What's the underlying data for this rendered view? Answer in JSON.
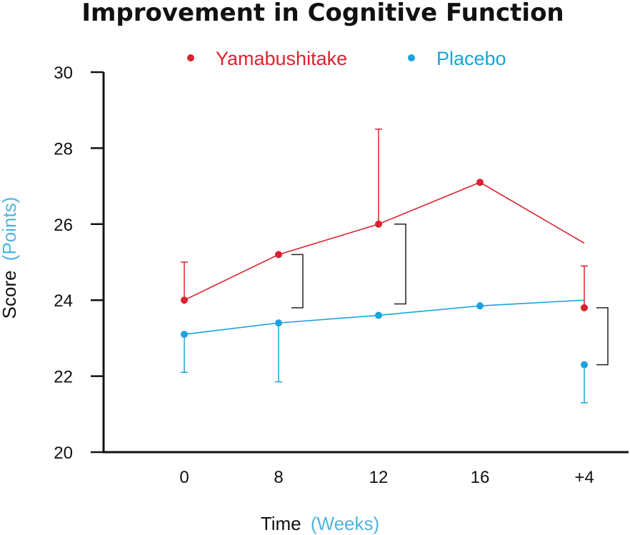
{
  "chart_data": {
    "type": "line",
    "title": "Improvement in Cognitive Function",
    "xlabel": {
      "main": "Time",
      "unit": "(Weeks)"
    },
    "ylabel": {
      "main": "Score",
      "unit": "(Points)"
    },
    "categories": [
      "0",
      "8",
      "12",
      "16",
      "+4"
    ],
    "ylim": [
      20,
      30
    ],
    "yticks": [
      "20",
      "22",
      "24",
      "26",
      "28",
      "30"
    ],
    "legend_position": "top-center",
    "colors": {
      "axis": "#111111",
      "accent": "#4fb3e0"
    },
    "series": [
      {
        "name": "Yamabushitake",
        "color": "#d9232e",
        "values": [
          24.0,
          25.2,
          26.0,
          27.1,
          23.8
        ],
        "line_values": [
          24.0,
          25.2,
          26.0,
          27.1,
          25.5
        ],
        "error_upper": [
          25.0,
          null,
          28.5,
          null,
          24.9
        ]
      },
      {
        "name": "Placebo",
        "color": "#1aa3dc",
        "values": [
          23.1,
          23.4,
          23.6,
          23.85,
          22.3
        ],
        "line_values": [
          23.1,
          23.4,
          23.6,
          23.85,
          24.0
        ],
        "error_lower": [
          22.1,
          21.85,
          null,
          null,
          21.3
        ]
      }
    ],
    "significance_brackets": [
      {
        "category": "8",
        "y_range": [
          23.8,
          25.2
        ]
      },
      {
        "category": "12",
        "y_range": [
          23.9,
          26.0
        ]
      },
      {
        "category": "+4",
        "y_range": [
          22.3,
          23.8
        ]
      }
    ]
  }
}
